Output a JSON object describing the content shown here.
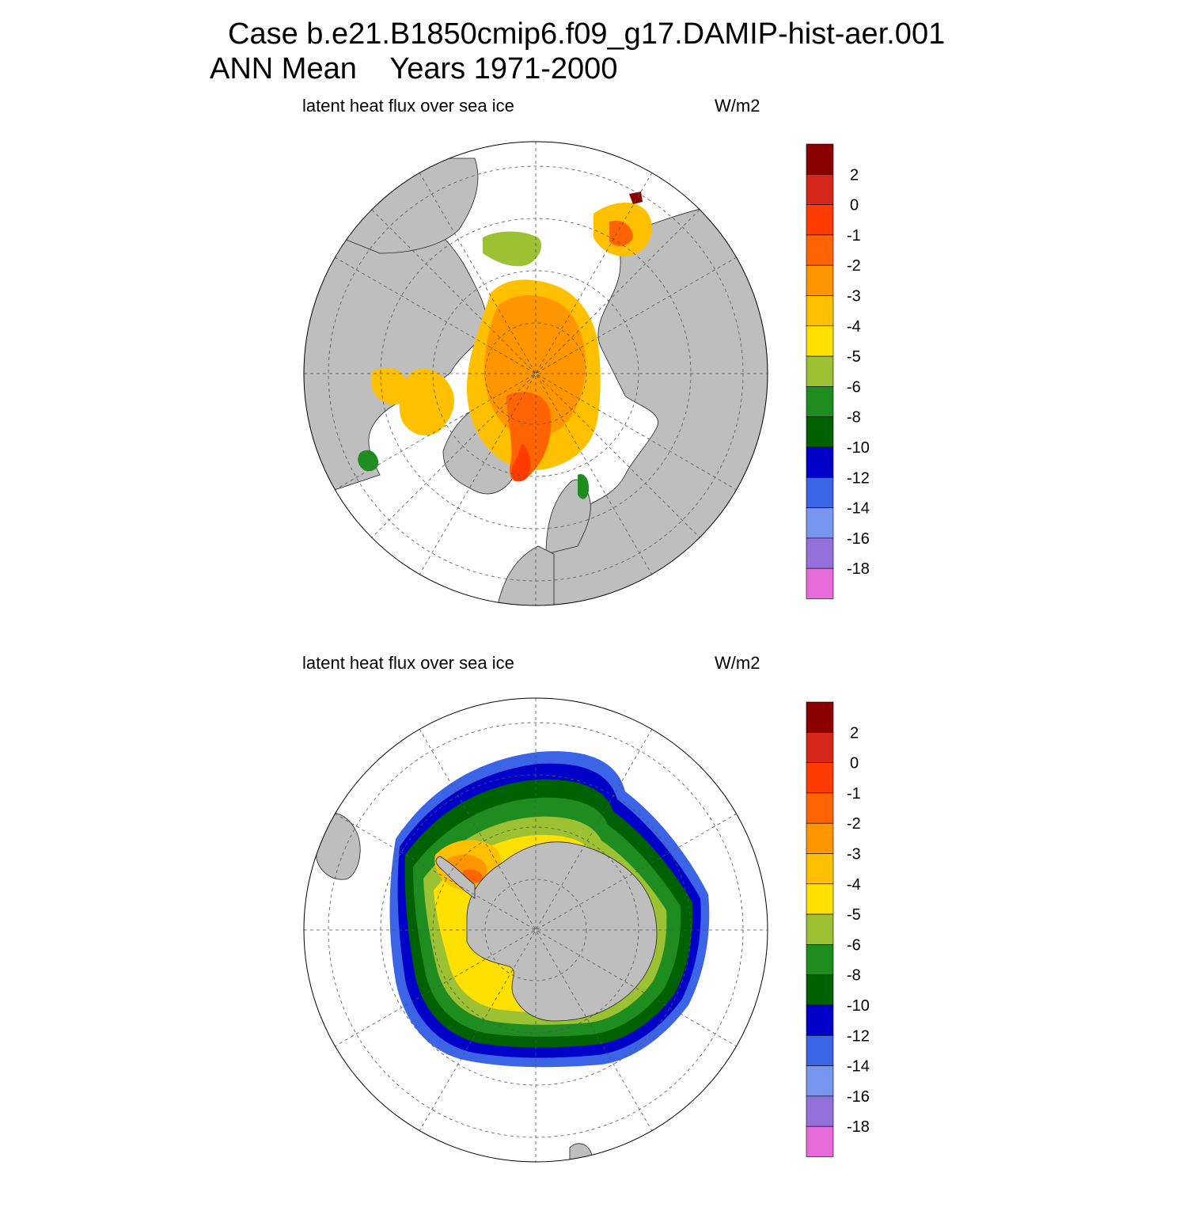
{
  "title": {
    "line1": "Case b.e21.B1850cmip6.f09_g17.DAMIP-hist-aer.001",
    "line2": "ANN Mean    Years 1971-2000"
  },
  "colors": {
    "land": "#bebebe",
    "ocean": "#ffffff",
    "grid": "#555555"
  },
  "colorbar": {
    "labels": [
      "2",
      "0",
      "-1",
      "-2",
      "-3",
      "-4",
      "-5",
      "-6",
      "-8",
      "-10",
      "-12",
      "-14",
      "-16",
      "-18"
    ],
    "colors": [
      "#8b0000",
      "#d7261a",
      "#ff3b00",
      "#ff6400",
      "#ff9600",
      "#ffc000",
      "#ffe000",
      "#9cc133",
      "#1f8c20",
      "#006100",
      "#0000c8",
      "#3c64e6",
      "#7896f0",
      "#9370db",
      "#e66cdc"
    ]
  },
  "panels": [
    {
      "id": "north",
      "variable": "latent heat flux over sea ice",
      "units": "W/m2"
    },
    {
      "id": "south",
      "variable": "latent heat flux over sea ice",
      "units": "W/m2"
    }
  ]
}
